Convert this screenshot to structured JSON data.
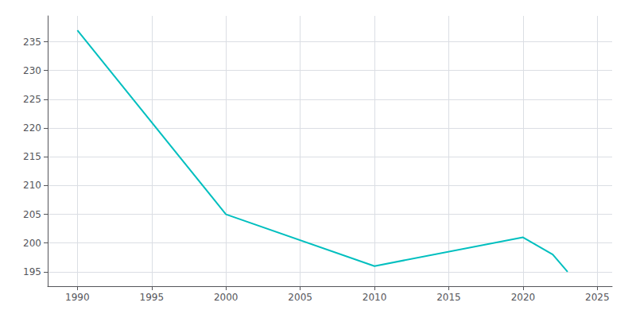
{
  "chart_data": {
    "type": "line",
    "x": [
      1990,
      2000,
      2010,
      2020,
      2022,
      2023
    ],
    "values": [
      237,
      205,
      196,
      201,
      198,
      195
    ],
    "color": "#00BFBF",
    "xlim": [
      1988,
      2026
    ],
    "xticks": [
      1990,
      1995,
      2000,
      2005,
      2010,
      2015,
      2020,
      2025
    ],
    "ylim": [
      192.5,
      239.5
    ],
    "yticks": [
      195,
      200,
      205,
      210,
      215,
      220,
      225,
      230,
      235
    ],
    "grid": true
  }
}
